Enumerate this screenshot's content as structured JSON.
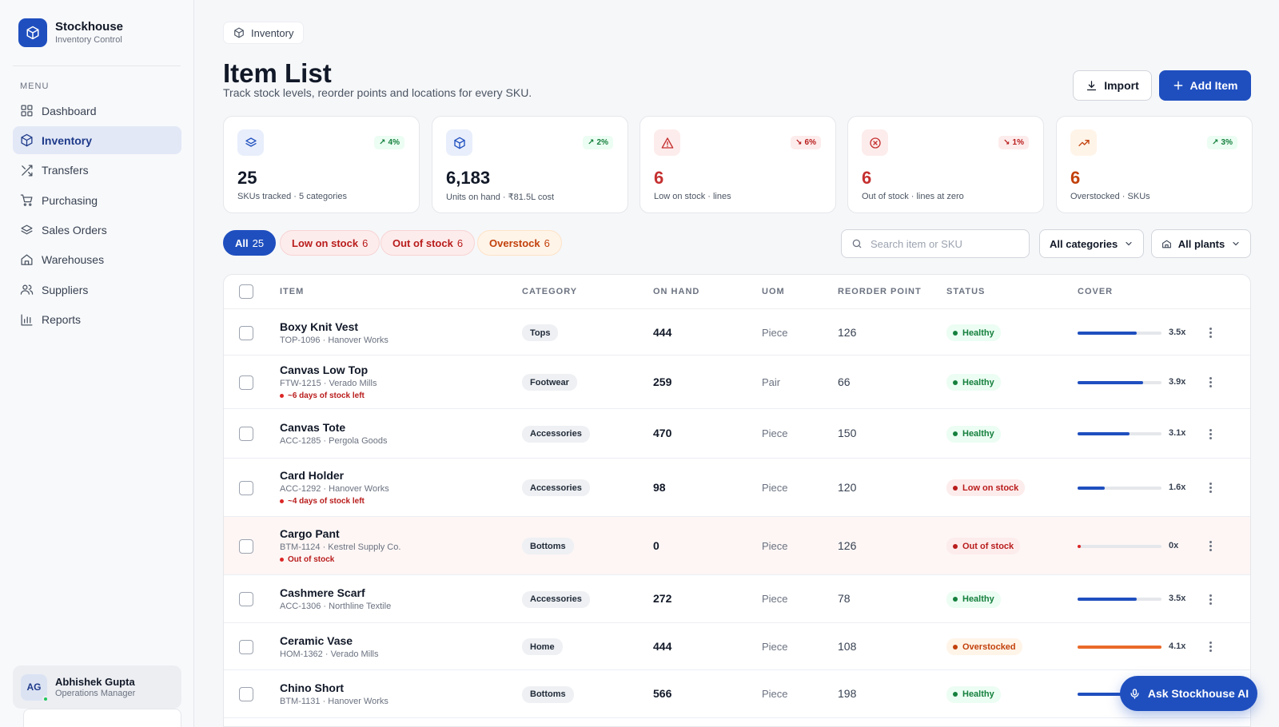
{
  "brand": {
    "name": "Stockhouse",
    "subtitle": "Inventory Control"
  },
  "sidebar": {
    "menu_label": "MENU",
    "items": [
      {
        "label": "Dashboard",
        "icon": "grid-icon",
        "active": false
      },
      {
        "label": "Inventory",
        "icon": "box-icon",
        "active": true
      },
      {
        "label": "Transfers",
        "icon": "shuffle-icon",
        "active": false
      },
      {
        "label": "Purchasing",
        "icon": "cart-icon",
        "active": false
      },
      {
        "label": "Sales Orders",
        "icon": "layers-icon",
        "active": false
      },
      {
        "label": "Warehouses",
        "icon": "home-icon",
        "active": false
      },
      {
        "label": "Suppliers",
        "icon": "users-icon",
        "active": false
      },
      {
        "label": "Reports",
        "icon": "bar-chart-icon",
        "active": false
      }
    ]
  },
  "user": {
    "initials": "AG",
    "name": "Abhishek Gupta",
    "role": "Operations Manager"
  },
  "breadcrumb": {
    "label": "Inventory"
  },
  "page": {
    "title": "Item List",
    "subtitle": "Track stock levels, reorder points and locations for every SKU."
  },
  "actions": {
    "import_label": "Import",
    "add_label": "Add Item"
  },
  "stats": [
    {
      "icon": "layers-icon",
      "value": "25",
      "label": "SKUs tracked · 5 categories",
      "trend": "4%",
      "trend_dir": "up",
      "icon_bg": "#e8eefb",
      "icon_color": "#1f4fbf"
    },
    {
      "icon": "box-icon",
      "value": "6,183",
      "label": "Units on hand · ₹81.5L cost",
      "trend": "2%",
      "trend_dir": "up",
      "icon_bg": "#e8eefb",
      "icon_color": "#1f4fbf"
    },
    {
      "icon": "warning-icon",
      "value": "6",
      "label": "Low on stock · lines",
      "trend": "6%",
      "trend_dir": "down",
      "icon_bg": "#fdecec",
      "icon_color": "#c53030"
    },
    {
      "icon": "x-circle-icon",
      "value": "6",
      "label": "Out of stock · lines at zero",
      "trend": "1%",
      "trend_dir": "down",
      "icon_bg": "#fdecec",
      "icon_color": "#c53030"
    },
    {
      "icon": "trend-up-icon",
      "value": "6",
      "label": "Overstocked · SKUs",
      "trend": "3%",
      "trend_dir": "up",
      "icon_bg": "#fff4e8",
      "icon_color": "#c2410c"
    }
  ],
  "filters": {
    "chips": [
      {
        "label": "All",
        "count": "25",
        "variant": "active"
      },
      {
        "label": "Low on stock",
        "count": "6",
        "variant": "low"
      },
      {
        "label": "Out of stock",
        "count": "6",
        "variant": "out"
      },
      {
        "label": "Overstock",
        "count": "6",
        "variant": "over"
      }
    ],
    "search_placeholder": "Search item or SKU",
    "category_select": "All categories",
    "plant_select": "All plants"
  },
  "table": {
    "columns": [
      "ITEM",
      "CATEGORY",
      "ON HAND",
      "UOM",
      "REORDER POINT",
      "STATUS",
      "COVER"
    ],
    "rows": [
      {
        "name": "Boxy Knit Vest",
        "sku": "TOP-1096 · Hanover Works",
        "note": "",
        "category": "Tops",
        "on_hand": "444",
        "uom": "Piece",
        "reorder": "126",
        "status": "Healthy",
        "status_kind": "healthy",
        "cover": "3.5x",
        "cover_fill": 0.7
      },
      {
        "name": "Canvas Low Top",
        "sku": "FTW-1215 · Verado Mills",
        "note": "~6 days of stock left",
        "category": "Footwear",
        "on_hand": "259",
        "uom": "Pair",
        "reorder": "66",
        "status": "Healthy",
        "status_kind": "healthy",
        "cover": "3.9x",
        "cover_fill": 0.78
      },
      {
        "name": "Canvas Tote",
        "sku": "ACC-1285 · Pergola Goods",
        "note": "",
        "category": "Accessories",
        "on_hand": "470",
        "uom": "Piece",
        "reorder": "150",
        "status": "Healthy",
        "status_kind": "healthy",
        "cover": "3.1x",
        "cover_fill": 0.62
      },
      {
        "name": "Card Holder",
        "sku": "ACC-1292 · Hanover Works",
        "note": "~4 days of stock left",
        "category": "Accessories",
        "on_hand": "98",
        "uom": "Piece",
        "reorder": "120",
        "status": "Low on stock",
        "status_kind": "low",
        "cover": "1.6x",
        "cover_fill": 0.32
      },
      {
        "name": "Cargo Pant",
        "sku": "BTM-1124 · Kestrel Supply Co.",
        "note": "Out of stock",
        "category": "Bottoms",
        "on_hand": "0",
        "uom": "Piece",
        "reorder": "126",
        "status": "Out of stock",
        "status_kind": "out",
        "cover": "0x",
        "cover_fill": 0
      },
      {
        "name": "Cashmere Scarf",
        "sku": "ACC-1306 · Northline Textile",
        "note": "",
        "category": "Accessories",
        "on_hand": "272",
        "uom": "Piece",
        "reorder": "78",
        "status": "Healthy",
        "status_kind": "healthy",
        "cover": "3.5x",
        "cover_fill": 0.7
      },
      {
        "name": "Ceramic Vase",
        "sku": "HOM-1362 · Verado Mills",
        "note": "",
        "category": "Home",
        "on_hand": "444",
        "uom": "Piece",
        "reorder": "108",
        "status": "Overstocked",
        "status_kind": "over",
        "cover": "4.1x",
        "cover_fill": 1.0
      },
      {
        "name": "Chino Short",
        "sku": "BTM-1131 · Hanover Works",
        "note": "",
        "category": "Bottoms",
        "on_hand": "566",
        "uom": "Piece",
        "reorder": "198",
        "status": "Healthy",
        "status_kind": "healthy",
        "cover": "",
        "cover_fill": 0.7
      }
    ]
  },
  "ai": {
    "label": "Ask Stockhouse AI"
  },
  "colors": {
    "accent": "#1f4fbf",
    "healthy": "#15803d",
    "low": "#b91c1c",
    "over": "#c2410c"
  }
}
